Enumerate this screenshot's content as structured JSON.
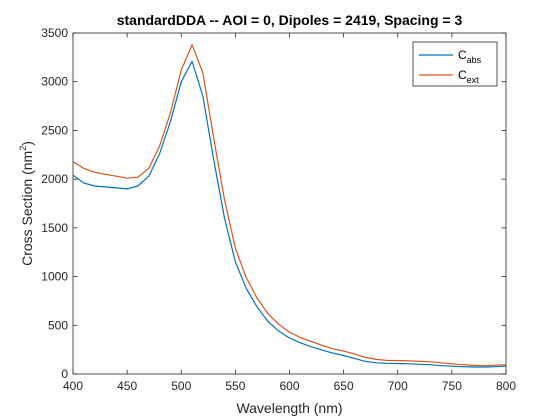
{
  "chart_data": {
    "type": "line",
    "title": "standardDDA -- AOI = 0, Dipoles = 2419, Spacing = 3",
    "xlabel": "Wavelength (nm)",
    "ylabel": "Cross Section (nm",
    "ylabel_sup": "2",
    "ylabel_end": ")",
    "xlim": [
      400,
      800
    ],
    "ylim": [
      0,
      3500
    ],
    "xticks": [
      400,
      450,
      500,
      550,
      600,
      650,
      700,
      750,
      800
    ],
    "yticks": [
      0,
      500,
      1000,
      1500,
      2000,
      2500,
      3000,
      3500
    ],
    "grid": false,
    "legend_position": "top-right",
    "x": [
      400,
      410,
      420,
      430,
      440,
      450,
      460,
      470,
      480,
      490,
      500,
      510,
      520,
      530,
      540,
      550,
      560,
      570,
      580,
      590,
      600,
      610,
      620,
      630,
      640,
      650,
      660,
      670,
      680,
      690,
      700,
      710,
      720,
      730,
      740,
      750,
      760,
      770,
      780,
      790,
      800
    ],
    "series": [
      {
        "name": "C",
        "subscript": "abs",
        "color": "#0072BD",
        "values": [
          2040,
          1960,
          1930,
          1920,
          1910,
          1900,
          1930,
          2030,
          2260,
          2590,
          3000,
          3210,
          2850,
          2200,
          1600,
          1150,
          880,
          690,
          540,
          440,
          370,
          320,
          280,
          245,
          215,
          190,
          160,
          130,
          115,
          110,
          108,
          105,
          100,
          95,
          85,
          80,
          75,
          72,
          72,
          75,
          80
        ]
      },
      {
        "name": "C",
        "subscript": "ext",
        "color": "#D95319",
        "values": [
          2180,
          2110,
          2070,
          2050,
          2030,
          2010,
          2020,
          2110,
          2340,
          2680,
          3120,
          3380,
          3090,
          2420,
          1790,
          1290,
          990,
          780,
          620,
          510,
          430,
          375,
          335,
          295,
          260,
          235,
          205,
          170,
          150,
          140,
          138,
          135,
          130,
          125,
          115,
          105,
          95,
          88,
          85,
          90,
          95
        ]
      }
    ]
  }
}
